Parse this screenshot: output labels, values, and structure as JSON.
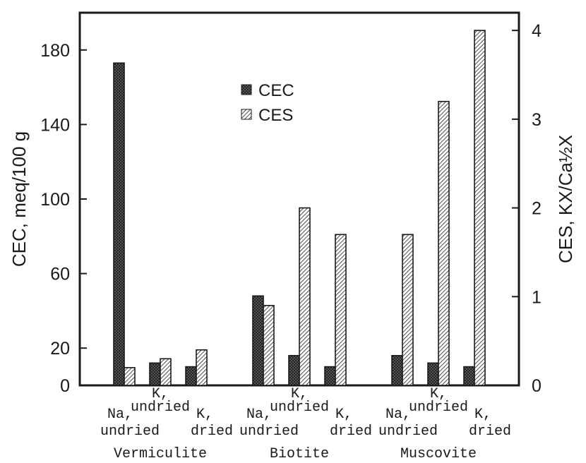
{
  "chart_data": {
    "type": "bar",
    "groups": [
      {
        "mineral": "Vermiculite",
        "treatments": [
          {
            "label_top": "",
            "label_bottom": "Na,",
            "label_bottom2": "undried"
          },
          {
            "label_top": "K,",
            "label_bottom": "undried",
            "label_bottom2": ""
          },
          {
            "label_top": "",
            "label_bottom": "K,",
            "label_bottom2": "dried"
          }
        ]
      },
      {
        "mineral": "Biotite",
        "treatments": [
          {
            "label_top": "",
            "label_bottom": "Na,",
            "label_bottom2": "undried"
          },
          {
            "label_top": "K,",
            "label_bottom": "undried",
            "label_bottom2": ""
          },
          {
            "label_top": "",
            "label_bottom": "K,",
            "label_bottom2": "dried"
          }
        ]
      },
      {
        "mineral": "Muscovite",
        "treatments": [
          {
            "label_top": "",
            "label_bottom": "Na,",
            "label_bottom2": "undried"
          },
          {
            "label_top": "K,",
            "label_bottom": "undried",
            "label_bottom2": ""
          },
          {
            "label_top": "",
            "label_bottom": "K,",
            "label_bottom2": "dried"
          }
        ]
      }
    ],
    "series": [
      {
        "name": "CEC",
        "axis": "left",
        "values": [
          173,
          12,
          10,
          48,
          16,
          10,
          16,
          12,
          10
        ]
      },
      {
        "name": "CES",
        "axis": "right",
        "values": [
          0.2,
          0.3,
          0.4,
          0.9,
          2.0,
          1.7,
          1.7,
          3.2,
          4.0
        ]
      }
    ],
    "bar_series_order_per_treatment": [
      [
        "CEC",
        "CES"
      ]
    ],
    "ylabel_left": "CEC, meq/100 g",
    "ylabel_right": "CES, KX/Ca½X",
    "ylim_left": [
      0,
      200
    ],
    "ylim_right": [
      0,
      4.2
    ],
    "yticks_left": [
      0,
      20,
      60,
      100,
      140,
      180
    ],
    "yticks_right": [
      0,
      1,
      2,
      3,
      4
    ],
    "legend_position": "top-center",
    "grid": false,
    "colors": {
      "CEC": "#3a3a3a",
      "CES": "#ffffff",
      "stroke": "#1a1a1a"
    }
  }
}
